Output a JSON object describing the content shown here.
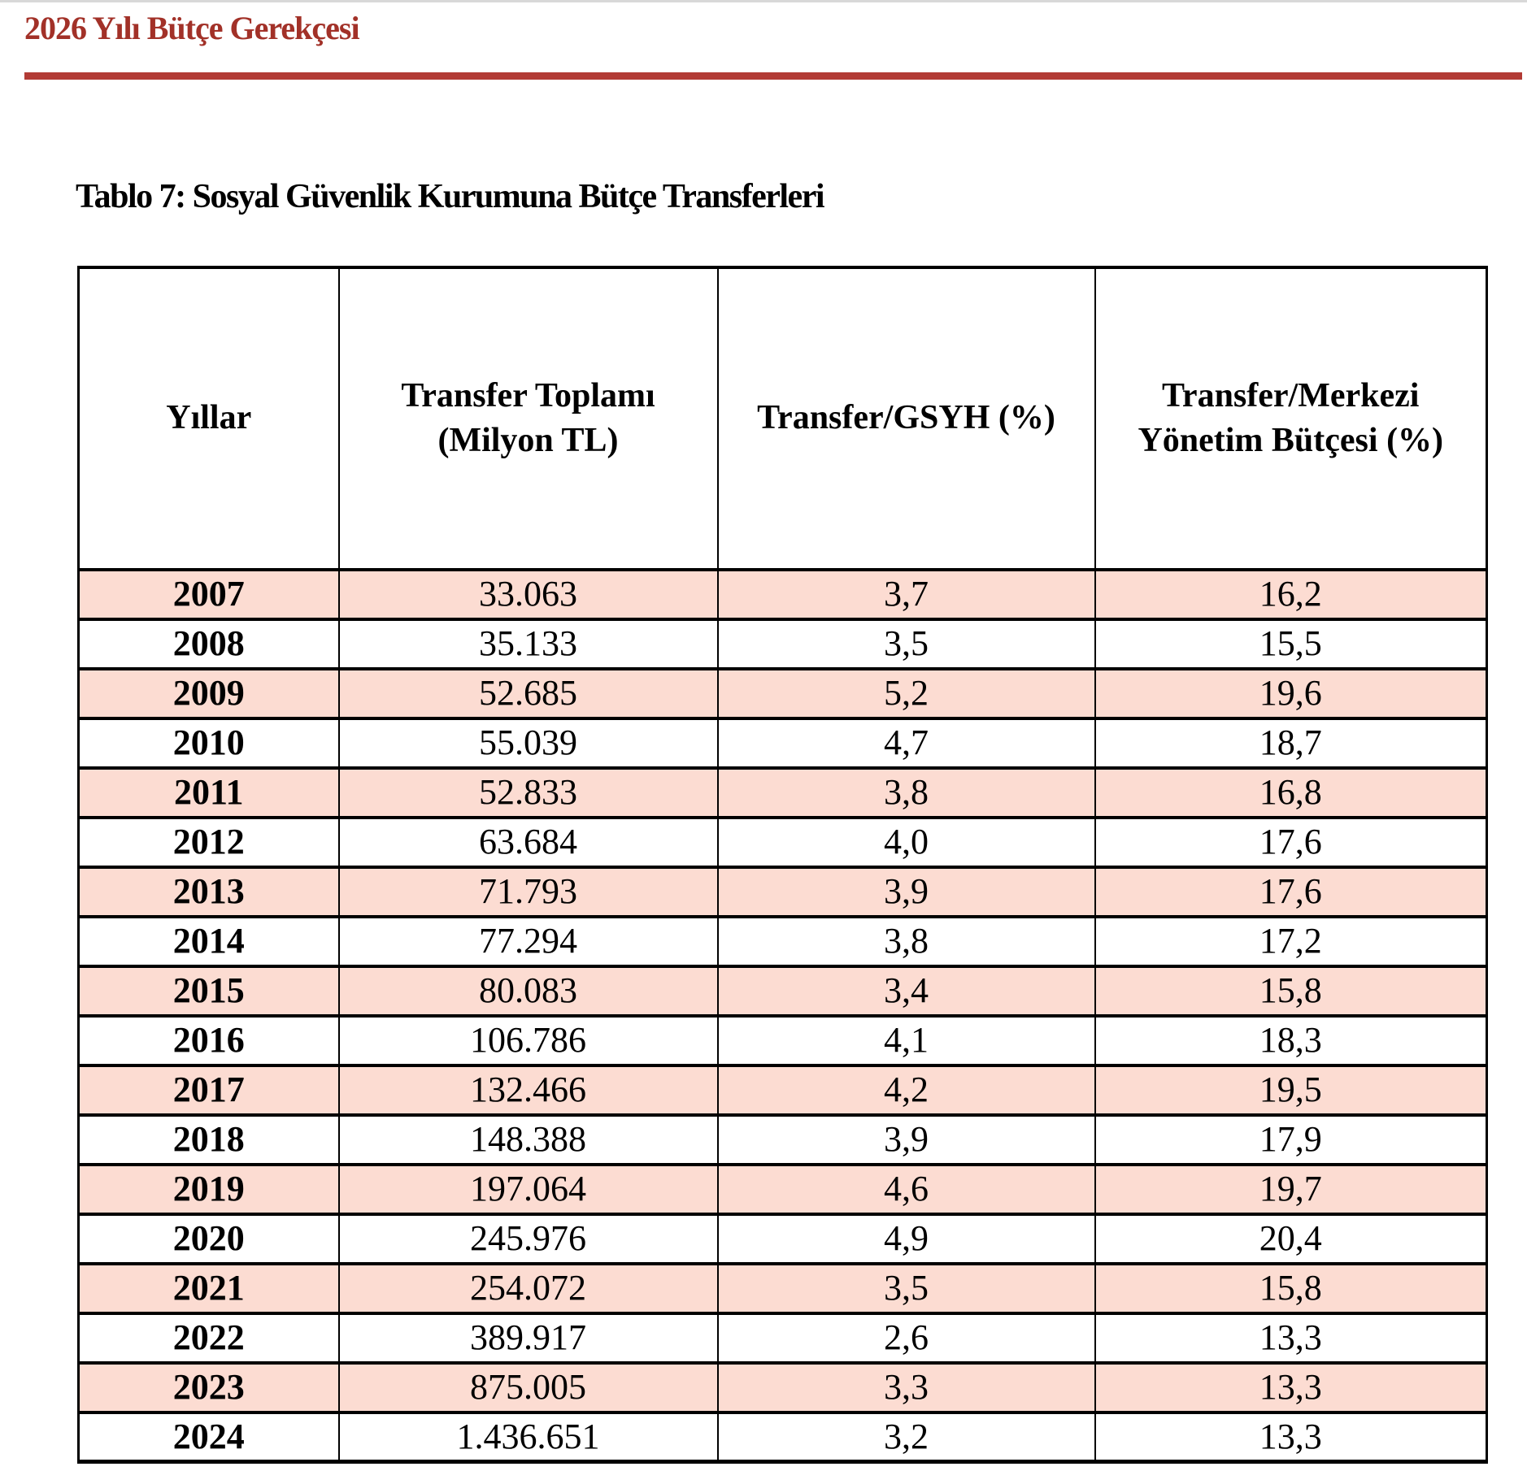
{
  "document": {
    "header_title": "2026 Yılı Bütçe Gerekçesi",
    "table_title": "Tablo 7: Sosyal Güvenlik Kurumuna Bütçe Transferleri"
  },
  "colors": {
    "header_text_red": "#A23128",
    "rule_red": "#B23B35",
    "row_pink": "#FCDCD2",
    "table_border": "#000000",
    "top_strip_gray": "#D8D8D8"
  },
  "table": {
    "headers": [
      {
        "lines": [
          "Yıllar"
        ]
      },
      {
        "lines": [
          "Transfer Toplamı",
          "(Milyon TL)"
        ]
      },
      {
        "lines": [
          "Transfer/GSYH (%)"
        ]
      },
      {
        "lines": [
          "Transfer/Merkezi",
          "Yönetim Bütçesi (%)"
        ]
      }
    ],
    "rows": [
      {
        "year": "2007",
        "transfer_toplami": "33.063",
        "transfer_gsyh": "3,7",
        "transfer_merkezi": "16,2"
      },
      {
        "year": "2008",
        "transfer_toplami": "35.133",
        "transfer_gsyh": "3,5",
        "transfer_merkezi": "15,5"
      },
      {
        "year": "2009",
        "transfer_toplami": "52.685",
        "transfer_gsyh": "5,2",
        "transfer_merkezi": "19,6"
      },
      {
        "year": "2010",
        "transfer_toplami": "55.039",
        "transfer_gsyh": "4,7",
        "transfer_merkezi": "18,7"
      },
      {
        "year": "2011",
        "transfer_toplami": "52.833",
        "transfer_gsyh": "3,8",
        "transfer_merkezi": "16,8"
      },
      {
        "year": "2012",
        "transfer_toplami": "63.684",
        "transfer_gsyh": "4,0",
        "transfer_merkezi": "17,6"
      },
      {
        "year": "2013",
        "transfer_toplami": "71.793",
        "transfer_gsyh": "3,9",
        "transfer_merkezi": "17,6"
      },
      {
        "year": "2014",
        "transfer_toplami": "77.294",
        "transfer_gsyh": "3,8",
        "transfer_merkezi": "17,2"
      },
      {
        "year": "2015",
        "transfer_toplami": "80.083",
        "transfer_gsyh": "3,4",
        "transfer_merkezi": "15,8"
      },
      {
        "year": "2016",
        "transfer_toplami": "106.786",
        "transfer_gsyh": "4,1",
        "transfer_merkezi": "18,3"
      },
      {
        "year": "2017",
        "transfer_toplami": "132.466",
        "transfer_gsyh": "4,2",
        "transfer_merkezi": "19,5"
      },
      {
        "year": "2018",
        "transfer_toplami": "148.388",
        "transfer_gsyh": "3,9",
        "transfer_merkezi": "17,9"
      },
      {
        "year": "2019",
        "transfer_toplami": "197.064",
        "transfer_gsyh": "4,6",
        "transfer_merkezi": "19,7"
      },
      {
        "year": "2020",
        "transfer_toplami": "245.976",
        "transfer_gsyh": "4,9",
        "transfer_merkezi": "20,4"
      },
      {
        "year": "2021",
        "transfer_toplami": "254.072",
        "transfer_gsyh": "3,5",
        "transfer_merkezi": "15,8"
      },
      {
        "year": "2022",
        "transfer_toplami": "389.917",
        "transfer_gsyh": "2,6",
        "transfer_merkezi": "13,3"
      },
      {
        "year": "2023",
        "transfer_toplami": "875.005",
        "transfer_gsyh": "3,3",
        "transfer_merkezi": "13,3"
      },
      {
        "year": "2024",
        "transfer_toplami": "1.436.651",
        "transfer_gsyh": "3,2",
        "transfer_merkezi": "13,3"
      }
    ]
  }
}
